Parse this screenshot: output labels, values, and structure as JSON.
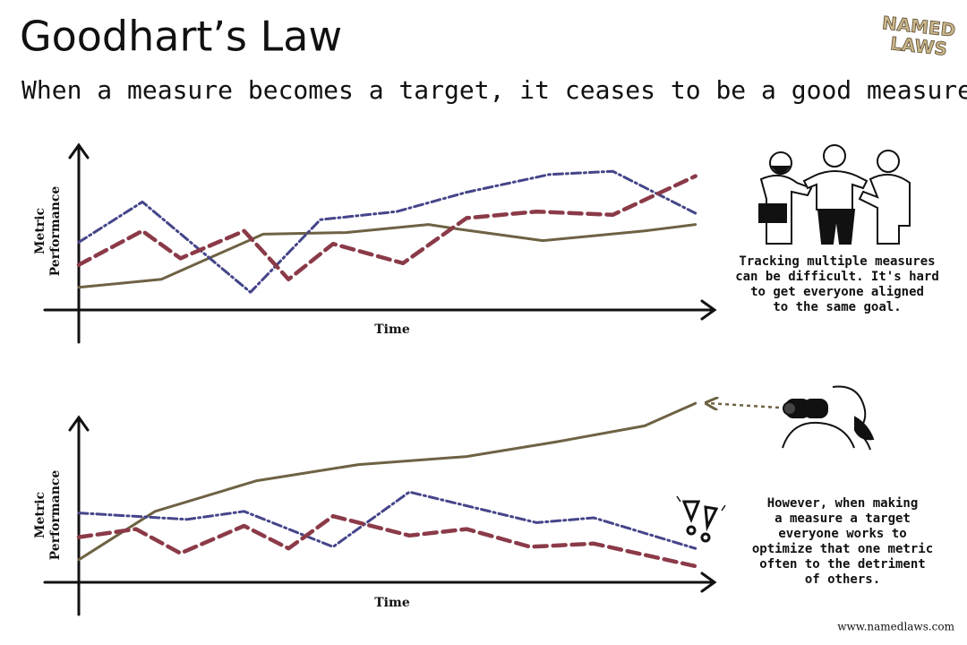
{
  "header": {
    "title": "Goodhart’s Law",
    "subtitle": "When a measure becomes a target, it ceases to be a good measure.",
    "logo": [
      "NAMED",
      "LAWS"
    ]
  },
  "chart_data": [
    {
      "type": "line",
      "ylabel": [
        "Metric",
        "Performance"
      ],
      "xlabel": "Time",
      "xlim": [
        0,
        100
      ],
      "ylim": [
        0,
        100
      ],
      "series": [
        {
          "color": "#6e6244",
          "dash": "solid",
          "x": [
            0,
            13,
            29,
            42,
            55,
            60,
            73,
            89,
            97
          ],
          "values": [
            14,
            19,
            47,
            48,
            53,
            50,
            43,
            49,
            53
          ]
        },
        {
          "color": "#45458a",
          "dash": "dashdot",
          "x": [
            0,
            10,
            27,
            38,
            50,
            61,
            74,
            84,
            97
          ],
          "values": [
            42,
            67,
            11,
            56,
            61,
            73,
            84,
            86,
            60
          ]
        },
        {
          "color": "#8b3a48",
          "dash": "dashed",
          "x": [
            0,
            10,
            16,
            26,
            33,
            40,
            51,
            61,
            72,
            84,
            97
          ],
          "values": [
            28,
            49,
            32,
            49,
            19,
            41,
            29,
            57,
            61,
            59,
            83
          ]
        }
      ]
    },
    {
      "type": "line",
      "ylabel": [
        "Metric",
        "Performance"
      ],
      "xlabel": "Time",
      "xlim": [
        0,
        100
      ],
      "ylim": [
        0,
        100
      ],
      "series": [
        {
          "color": "#6e6244",
          "dash": "solid",
          "x": [
            0,
            12,
            28,
            44,
            61,
            75,
            89,
            97
          ],
          "values": [
            14,
            44,
            63,
            73,
            78,
            87,
            97,
            111
          ]
        },
        {
          "color": "#45458a",
          "dash": "dashdot",
          "x": [
            0,
            17,
            26,
            40,
            52,
            72,
            81,
            97
          ],
          "values": [
            43,
            39,
            44,
            22,
            56,
            37,
            40,
            21
          ]
        },
        {
          "color": "#8b3a48",
          "dash": "dashed",
          "x": [
            0,
            9,
            16,
            26,
            33,
            40,
            52,
            61,
            71,
            81,
            97
          ],
          "values": [
            28,
            33,
            18,
            35,
            21,
            41,
            29,
            33,
            22,
            24,
            10
          ]
        }
      ]
    }
  ],
  "captions": [
    [
      "Tracking multiple measures",
      "can be difficult. It's hard",
      "to get everyone aligned",
      "to the same goal."
    ],
    [
      "However, when making",
      "a measure a target",
      "everyone works to",
      "optimize that one metric",
      "often to the detriment",
      "of others."
    ]
  ],
  "footer": "www.namedlaws.com"
}
